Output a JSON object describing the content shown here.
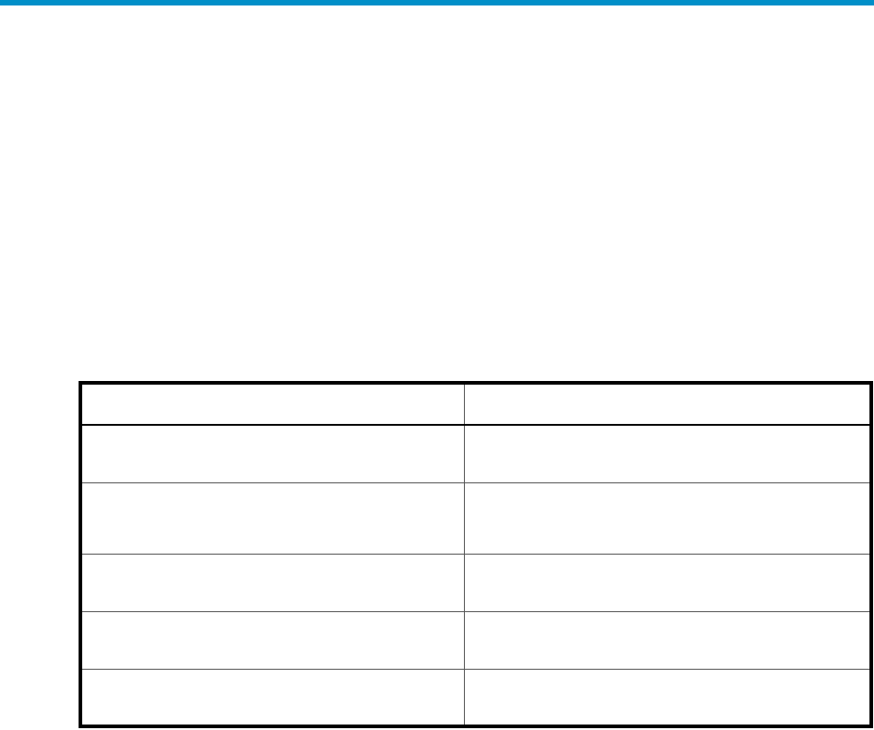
{
  "theme": {
    "accent_color": "#008fc8"
  },
  "table": {
    "header": [
      "",
      ""
    ],
    "rows": [
      [
        "",
        ""
      ],
      [
        "",
        ""
      ],
      [
        "",
        ""
      ],
      [
        "",
        ""
      ],
      [
        "",
        ""
      ]
    ]
  }
}
